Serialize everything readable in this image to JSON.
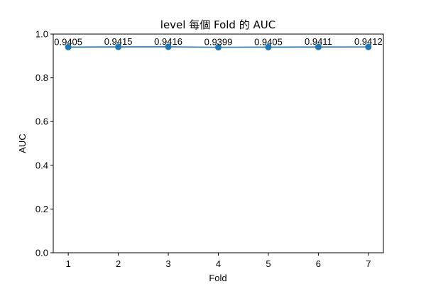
{
  "chart_data": {
    "type": "line",
    "title": "level 每個 Fold 的 AUC",
    "xlabel": "Fold",
    "ylabel": "AUC",
    "x": [
      1,
      2,
      3,
      4,
      5,
      6,
      7
    ],
    "y": [
      0.9405,
      0.9415,
      0.9416,
      0.9399,
      0.9405,
      0.9411,
      0.9412
    ],
    "data_labels": [
      "0.9405",
      "0.9415",
      "0.9416",
      "0.9399",
      "0.9405",
      "0.9411",
      "0.9412"
    ],
    "xticks": [
      "1",
      "2",
      "3",
      "4",
      "5",
      "6",
      "7"
    ],
    "yticks": [
      "0.0",
      "0.2",
      "0.4",
      "0.6",
      "0.8",
      "1.0"
    ],
    "ytick_values": [
      0,
      0.2,
      0.4,
      0.6,
      0.8,
      1.0
    ],
    "xlim": [
      0.7,
      7.3
    ],
    "ylim": [
      0,
      1.0
    ],
    "grid": false,
    "line_color": "#1f77b4",
    "marker": "circle"
  }
}
